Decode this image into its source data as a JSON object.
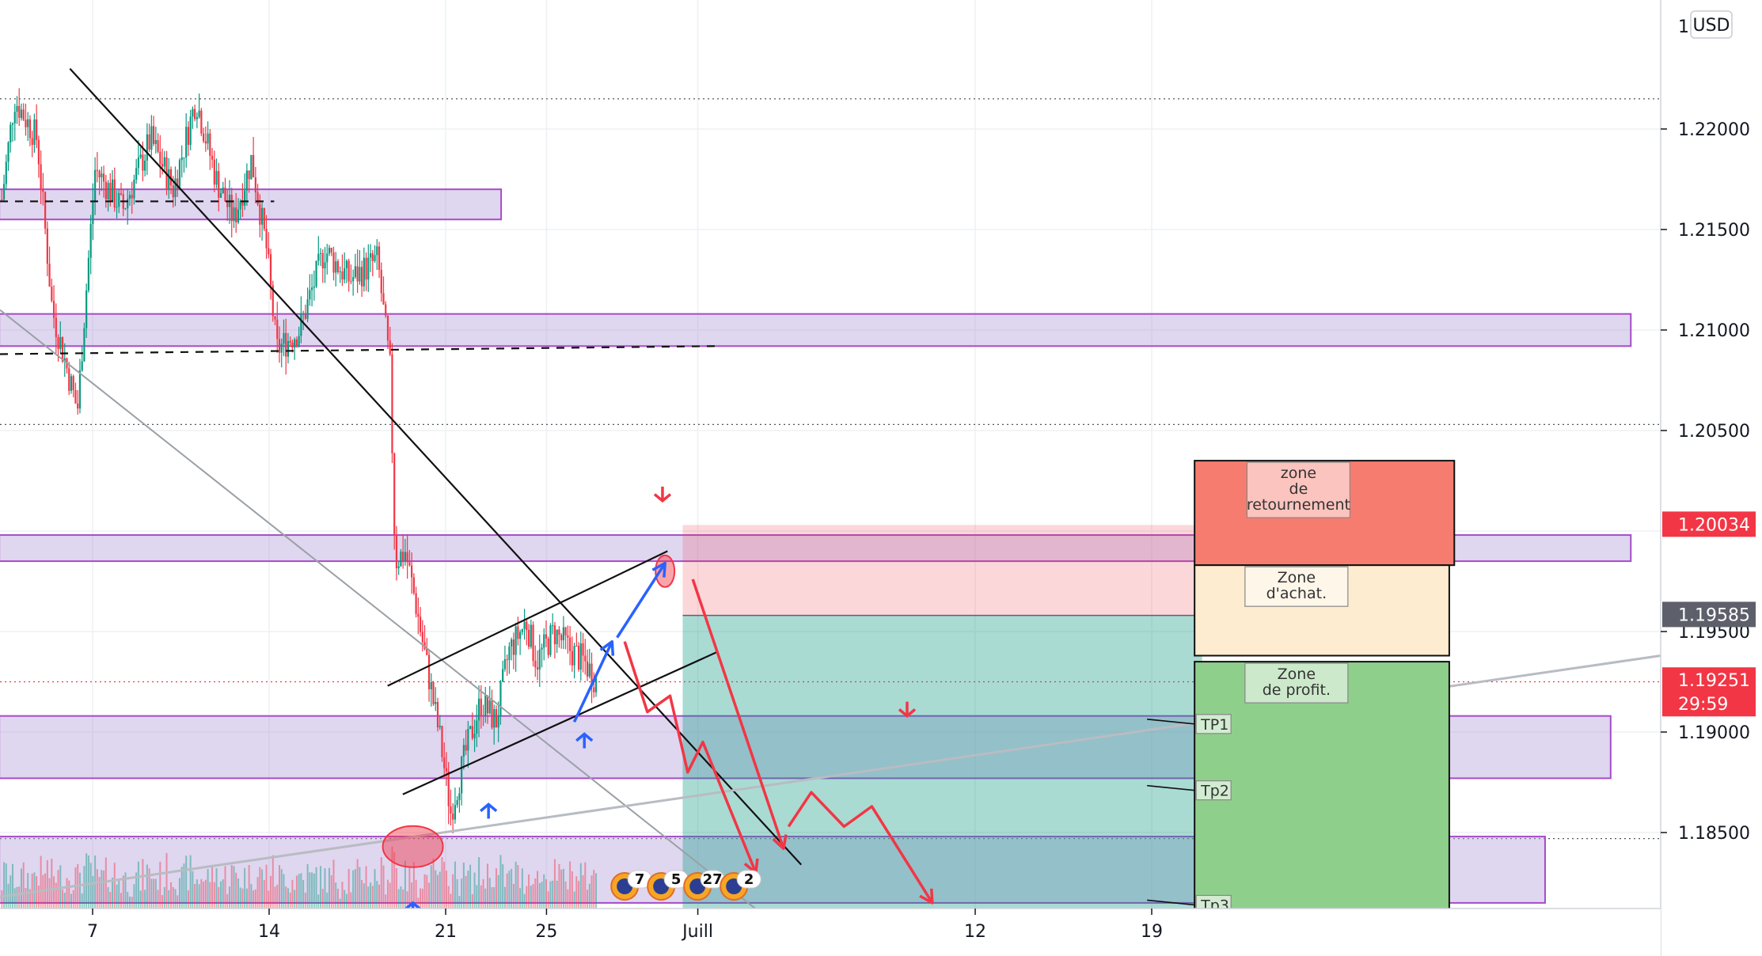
{
  "currency": "USD",
  "chart_data": {
    "type": "candlestick",
    "instrument_currency": "USD",
    "y_axis": {
      "range": [
        1.181,
        1.2255
      ],
      "ticks": [
        "1.22000",
        "1.21500",
        "1.21000",
        "1.20500",
        "1.19500",
        "1.19000",
        "1.18500"
      ],
      "top_partial_label": "1.2 0"
    },
    "x_axis": {
      "ticks": [
        {
          "label": "7",
          "day": 7
        },
        {
          "label": "14",
          "day": 14
        },
        {
          "label": "21",
          "day": 21
        },
        {
          "label": "25",
          "day": 25
        },
        {
          "label": "Juill",
          "day": 31
        },
        {
          "label": "12",
          "day": 42
        },
        {
          "label": "19",
          "day": 49
        }
      ]
    },
    "price_labels": [
      {
        "text": "1.20034",
        "value": 1.20034,
        "color": "#f23645"
      },
      {
        "text": "1.19585",
        "value": 1.19585,
        "color": "#5d606b"
      },
      {
        "text": "1.19251",
        "value": 1.19251,
        "color": "#f23645"
      },
      {
        "text": "29:59",
        "value": 1.19251,
        "color": "#f23645"
      }
    ],
    "zones": [
      {
        "y1": 1.2155,
        "y2": 1.217,
        "day1": 3.3,
        "day2": 23.2
      },
      {
        "y1": 1.2092,
        "y2": 1.2108,
        "day1": 3.3,
        "day2": 68.0
      },
      {
        "y1": 1.1985,
        "y2": 1.1998,
        "day1": 3.3,
        "day2": 68.0
      },
      {
        "y1": 1.1877,
        "y2": 1.1908,
        "day1": 3.3,
        "day2": 67.2
      },
      {
        "y1": 1.1815,
        "y2": 1.1848,
        "day1": 3.3,
        "day2": 64.6
      }
    ],
    "annotations": [
      {
        "text_lines": [
          "zone",
          "de",
          "retournement"
        ],
        "color": "#f77c70",
        "y_top": 1.2035,
        "y_bottom": 1.1983,
        "day1": 50.7,
        "day2": 61.0
      },
      {
        "text_lines": [
          "Zone",
          "d'achat."
        ],
        "color": "#fdeccf",
        "y_top": 1.1983,
        "y_bottom": 1.1938,
        "day1": 50.7,
        "day2": 60.8
      },
      {
        "text_lines": [
          "Zone",
          "de profit."
        ],
        "color": "#8fcf8c",
        "y_top": 1.1935,
        "y_bottom": 1.1812,
        "day1": 50.7,
        "day2": 60.8
      }
    ],
    "targets": [
      "TP1",
      "Tp2",
      "Tp3"
    ],
    "event_badges": [
      "7",
      "5",
      "27",
      "2"
    ]
  }
}
